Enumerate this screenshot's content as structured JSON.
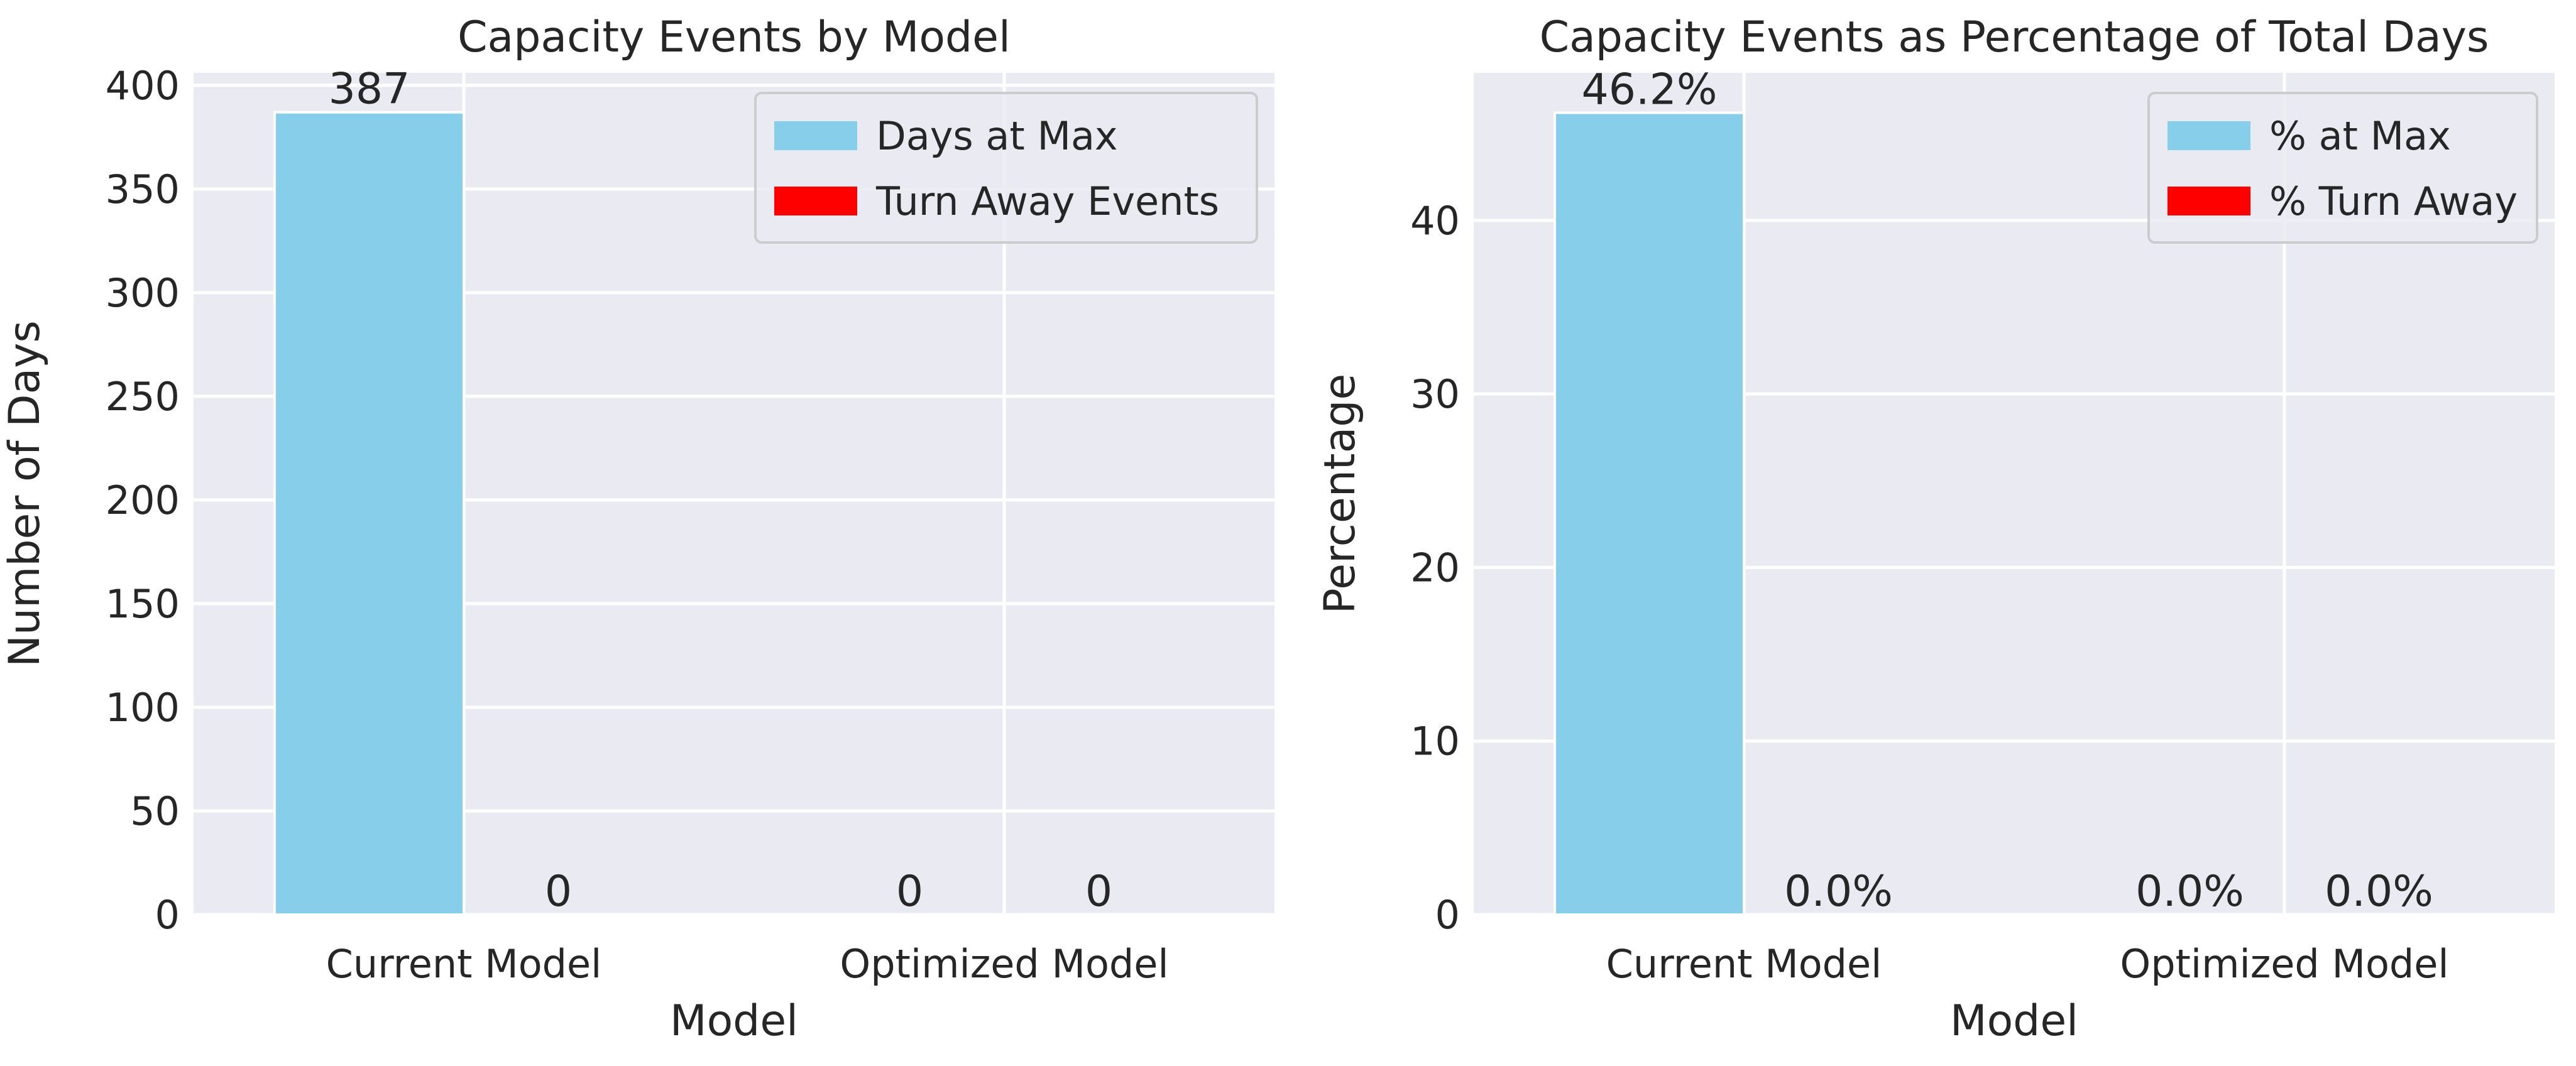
{
  "chart_data": [
    {
      "type": "bar",
      "title": "Capacity Events by Model",
      "xlabel": "Model",
      "ylabel": "Number of Days",
      "categories": [
        "Current Model",
        "Optimized Model"
      ],
      "series": [
        {
          "name": "Days at Max",
          "values": [
            387,
            0
          ],
          "labels": [
            "387",
            "0"
          ],
          "color": "#87ceeb"
        },
        {
          "name": "Turn Away Events",
          "values": [
            0,
            0
          ],
          "labels": [
            "0",
            "0"
          ],
          "color": "#ff0000"
        }
      ],
      "ylim": [
        0,
        406
      ],
      "yticks": [
        0,
        50,
        100,
        150,
        200,
        250,
        300,
        350,
        400
      ],
      "grid": true,
      "legend": "top-right"
    },
    {
      "type": "bar",
      "title": "Capacity Events as Percentage of Total Days",
      "xlabel": "Model",
      "ylabel": "Percentage",
      "categories": [
        "Current Model",
        "Optimized Model"
      ],
      "series": [
        {
          "name": "% at Max",
          "values": [
            46.2,
            0.0
          ],
          "labels": [
            "46.2%",
            "0.0%"
          ],
          "color": "#87ceeb"
        },
        {
          "name": "% Turn Away",
          "values": [
            0.0,
            0.0
          ],
          "labels": [
            "0.0%",
            "0.0%"
          ],
          "color": "#ff0000"
        }
      ],
      "ylim": [
        0,
        48.5
      ],
      "yticks": [
        0,
        10,
        20,
        30,
        40
      ],
      "grid": true,
      "legend": "top-right"
    }
  ]
}
